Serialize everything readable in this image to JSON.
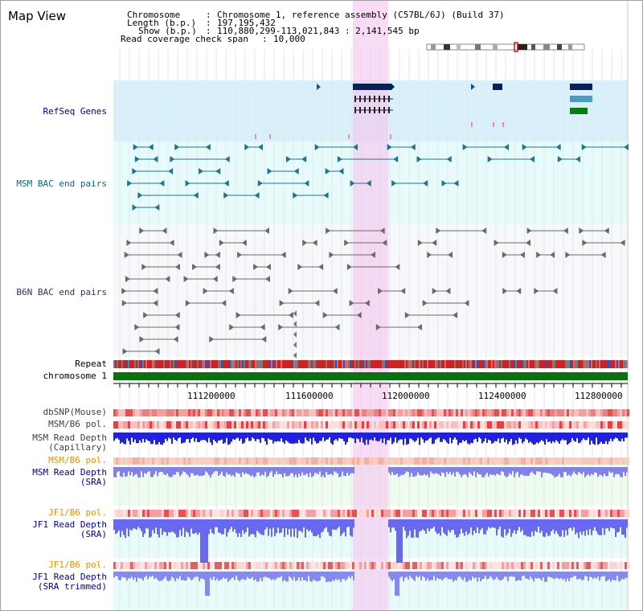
{
  "view_title": "Map View",
  "header": {
    "chromosome_label": "Chromosome",
    "chromosome_value": "Chromosome 1, reference assembly (C57BL/6J) (Build 37)",
    "length_label": "Length (b.p.)",
    "length_value": "197,195,432",
    "show_label": "Show (b.p.)",
    "show_value": "110,880,299-113,021,843 : 2,141,545 bp",
    "coverage_label": "Read coverage check span",
    "coverage_value": "10,000"
  },
  "tracks": {
    "refseq": "RefSeq Genes",
    "msm_bac": "MSM BAC end pairs",
    "b6n_bac": "B6N BAC end pairs",
    "repeat": "Repeat",
    "chromosome": "chromosome 1",
    "dbsnp": "dbSNP(Mouse)",
    "msm_b6_pol_1": "MSM/B6 pol.",
    "msm_depth_cap": "MSM Read Depth\n(Capillary)",
    "msm_b6_pol_2": "MSM/B6 pol.",
    "msm_depth_sra": "MSM Read Depth\n(SRA)",
    "jf1_b6_pol_1": "JF1/B6 pol.",
    "jf1_depth_sra": "JF1 Read Depth\n(SRA)",
    "jf1_b6_pol_2": "JF1/B6 pol.",
    "jf1_depth_trim": "JF1 Read Depth\n(SRA trimmed)"
  },
  "axis_ticks": [
    "111200000",
    "111600000",
    "112000000",
    "112400000",
    "112800000"
  ],
  "colors": {
    "refseq_bg": "#d8f0fa",
    "msm_bg": "#e8fbfb",
    "b6n_bg": "#f7f8fa",
    "highlight": "#f5c8f0",
    "navy_label": "#00007f",
    "teal_label": "#006b80",
    "b6n_label": "#303060",
    "orange_label": "#e89000",
    "blue_label": "#0000a0"
  }
}
